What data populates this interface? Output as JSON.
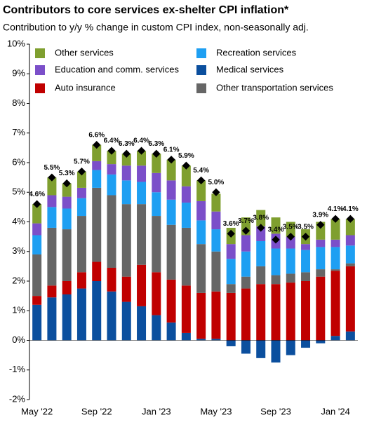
{
  "chart_data": {
    "type": "stacked_bar",
    "title": "Contributors to core services ex-shelter CPI inflation*",
    "subtitle": "Contribution to y/y % change in custom CPI index, non-seasonally adj.",
    "categories": [
      "May '22",
      null,
      null,
      null,
      "Sep '22",
      null,
      null,
      null,
      "Jan '23",
      null,
      null,
      null,
      "May '23",
      null,
      null,
      null,
      "Sep '23",
      null,
      null,
      null,
      "Jan '24",
      null
    ],
    "series": [
      {
        "name": "Medical services",
        "color": "#0b4f9e",
        "values": [
          1.2,
          1.45,
          1.55,
          1.75,
          2.0,
          1.65,
          1.3,
          1.15,
          0.85,
          0.6,
          0.25,
          0.05,
          0.05,
          -0.2,
          -0.45,
          -0.6,
          -0.75,
          -0.5,
          -0.25,
          -0.1,
          0.15,
          0.3
        ]
      },
      {
        "name": "Auto insurance",
        "color": "#c00000",
        "values": [
          0.3,
          0.4,
          0.45,
          0.55,
          0.65,
          0.8,
          0.85,
          1.4,
          1.45,
          1.45,
          1.6,
          1.55,
          1.6,
          1.6,
          1.75,
          1.9,
          1.9,
          1.95,
          2.0,
          2.15,
          2.2,
          2.2
        ]
      },
      {
        "name": "Other transportation services",
        "color": "#666666",
        "values": [
          1.4,
          1.95,
          1.75,
          1.9,
          2.5,
          2.45,
          2.45,
          2.05,
          1.9,
          1.85,
          1.95,
          1.65,
          1.35,
          0.3,
          0.4,
          0.6,
          0.3,
          0.3,
          0.3,
          0.25,
          0.05,
          0.1
        ]
      },
      {
        "name": "Recreation services",
        "color": "#1e9ff2",
        "values": [
          0.65,
          0.7,
          0.7,
          0.6,
          0.6,
          0.7,
          0.8,
          0.75,
          0.8,
          0.85,
          0.85,
          0.8,
          0.75,
          0.85,
          0.85,
          0.85,
          0.9,
          0.85,
          0.75,
          0.75,
          0.75,
          0.6
        ]
      },
      {
        "name": "Education and comm. services",
        "color": "#7b4fc9",
        "values": [
          0.4,
          0.4,
          0.4,
          0.35,
          0.3,
          0.35,
          0.5,
          0.55,
          0.65,
          0.65,
          0.55,
          0.65,
          0.6,
          0.5,
          0.55,
          0.5,
          0.5,
          0.4,
          0.2,
          0.25,
          0.25,
          0.35
        ]
      },
      {
        "name": "Other services",
        "color": "#7f9f2f",
        "values": [
          0.65,
          0.6,
          0.45,
          0.55,
          0.55,
          0.45,
          0.4,
          0.5,
          0.65,
          0.7,
          0.7,
          0.7,
          0.6,
          0.55,
          0.6,
          0.55,
          0.55,
          0.5,
          0.5,
          0.6,
          0.7,
          0.55
        ]
      }
    ],
    "totals": {
      "color": "#000000",
      "values": [
        4.6,
        5.5,
        5.3,
        5.7,
        6.6,
        6.4,
        6.3,
        6.4,
        6.3,
        6.1,
        5.9,
        5.4,
        5.0,
        3.6,
        3.7,
        3.8,
        3.4,
        3.5,
        3.5,
        3.9,
        4.1,
        4.1
      ],
      "value_labels": [
        "4.6%",
        "5.5%",
        "5.3%",
        "5.7%",
        "6.6%",
        "6.4%",
        "6.3%",
        "6.4%",
        "6.3%",
        "6.1%",
        "5.9%",
        "5.4%",
        "5.0%",
        "3.6%",
        "3.7%",
        "3.8%",
        "3.4%",
        "3.5%",
        "3.5%",
        "3.9%",
        "4.1%",
        "4.1%"
      ]
    },
    "ylim": [
      -2,
      10
    ],
    "yticks": [
      {
        "value": -2,
        "label": "-2%"
      },
      {
        "value": -1,
        "label": "-1%"
      },
      {
        "value": 0,
        "label": "0%"
      },
      {
        "value": 1,
        "label": "1%"
      },
      {
        "value": 2,
        "label": "2%"
      },
      {
        "value": 3,
        "label": "3%"
      },
      {
        "value": 4,
        "label": "4%"
      },
      {
        "value": 5,
        "label": "5%"
      },
      {
        "value": 6,
        "label": "6%"
      },
      {
        "value": 7,
        "label": "7%"
      },
      {
        "value": 8,
        "label": "8%"
      },
      {
        "value": 9,
        "label": "9%"
      },
      {
        "value": 10,
        "label": "10%"
      }
    ],
    "grid": false
  }
}
